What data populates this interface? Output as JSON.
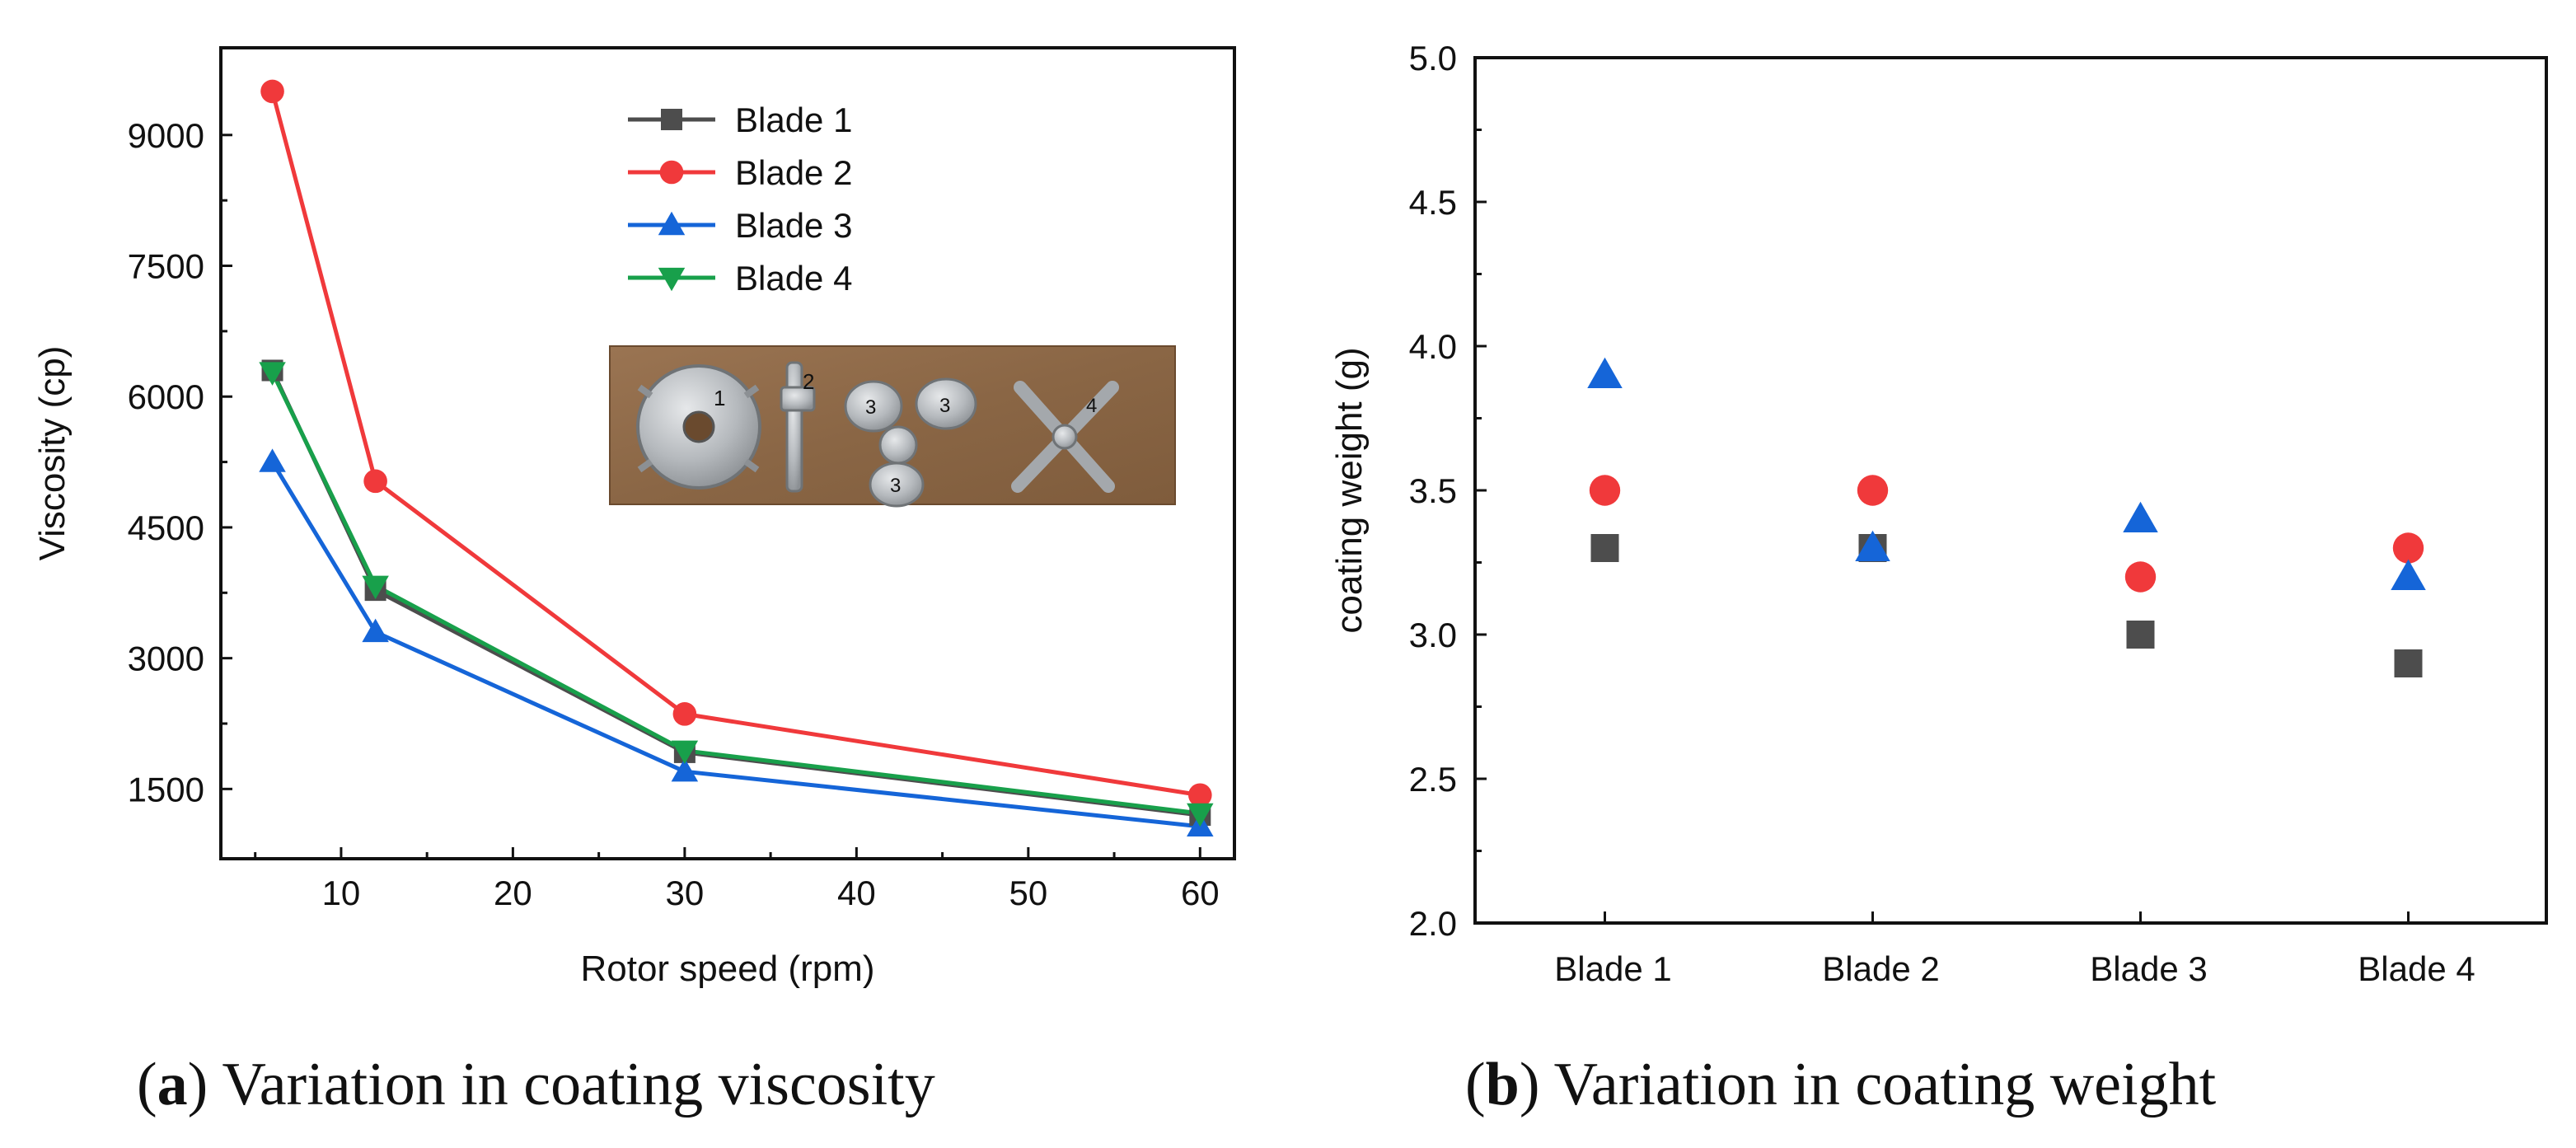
{
  "chart_data": [
    {
      "panel": "a",
      "type": "line",
      "caption_label": "a",
      "caption_text": "Variation in coating viscosity",
      "xlabel": "Rotor speed (rpm)",
      "ylabel": "Viscosity (cp)",
      "x_ticks": [
        "10",
        "20",
        "30",
        "40",
        "50",
        "60"
      ],
      "y_ticks": [
        "1500",
        "3000",
        "4500",
        "6000",
        "7500",
        "9000"
      ],
      "xlim": [
        3,
        62
      ],
      "ylim": [
        700,
        10000
      ],
      "legend_position": "top-center",
      "has_inset_photo": true,
      "x": [
        6,
        12,
        30,
        60
      ],
      "series": [
        {
          "name": "Blade 1",
          "marker": "square",
          "color": "#4d4d4d",
          "values": [
            6300,
            3780,
            1920,
            1200
          ]
        },
        {
          "name": "Blade 2",
          "marker": "circle",
          "color": "#f0393b",
          "values": [
            9500,
            5030,
            2360,
            1430
          ]
        },
        {
          "name": "Blade 3",
          "marker": "triangle-up",
          "color": "#1565d8",
          "values": [
            5250,
            3300,
            1700,
            1070
          ]
        },
        {
          "name": "Blade 4",
          "marker": "triangle-down",
          "color": "#18a04b",
          "values": [
            6280,
            3830,
            1940,
            1220
          ]
        }
      ]
    },
    {
      "panel": "b",
      "type": "scatter",
      "caption_label": "b",
      "caption_text": "Variation in coating weight",
      "xlabel": "",
      "ylabel": "coating weight (g)",
      "categories": [
        "Blade 1",
        "Blade 2",
        "Blade 3",
        "Blade 4"
      ],
      "y_ticks": [
        "2.0",
        "2.5",
        "3.0",
        "3.5",
        "4.0",
        "4.5",
        "5.0"
      ],
      "ylim": [
        2.0,
        5.0
      ],
      "series": [
        {
          "marker": "square",
          "color": "#4d4d4d",
          "values": [
            3.3,
            3.3,
            3.0,
            2.9
          ]
        },
        {
          "marker": "circle",
          "color": "#f0393b",
          "values": [
            3.5,
            3.5,
            3.2,
            3.3
          ]
        },
        {
          "marker": "triangle-up",
          "color": "#1565d8",
          "values": [
            3.9,
            3.3,
            3.4,
            3.2
          ]
        }
      ]
    }
  ]
}
